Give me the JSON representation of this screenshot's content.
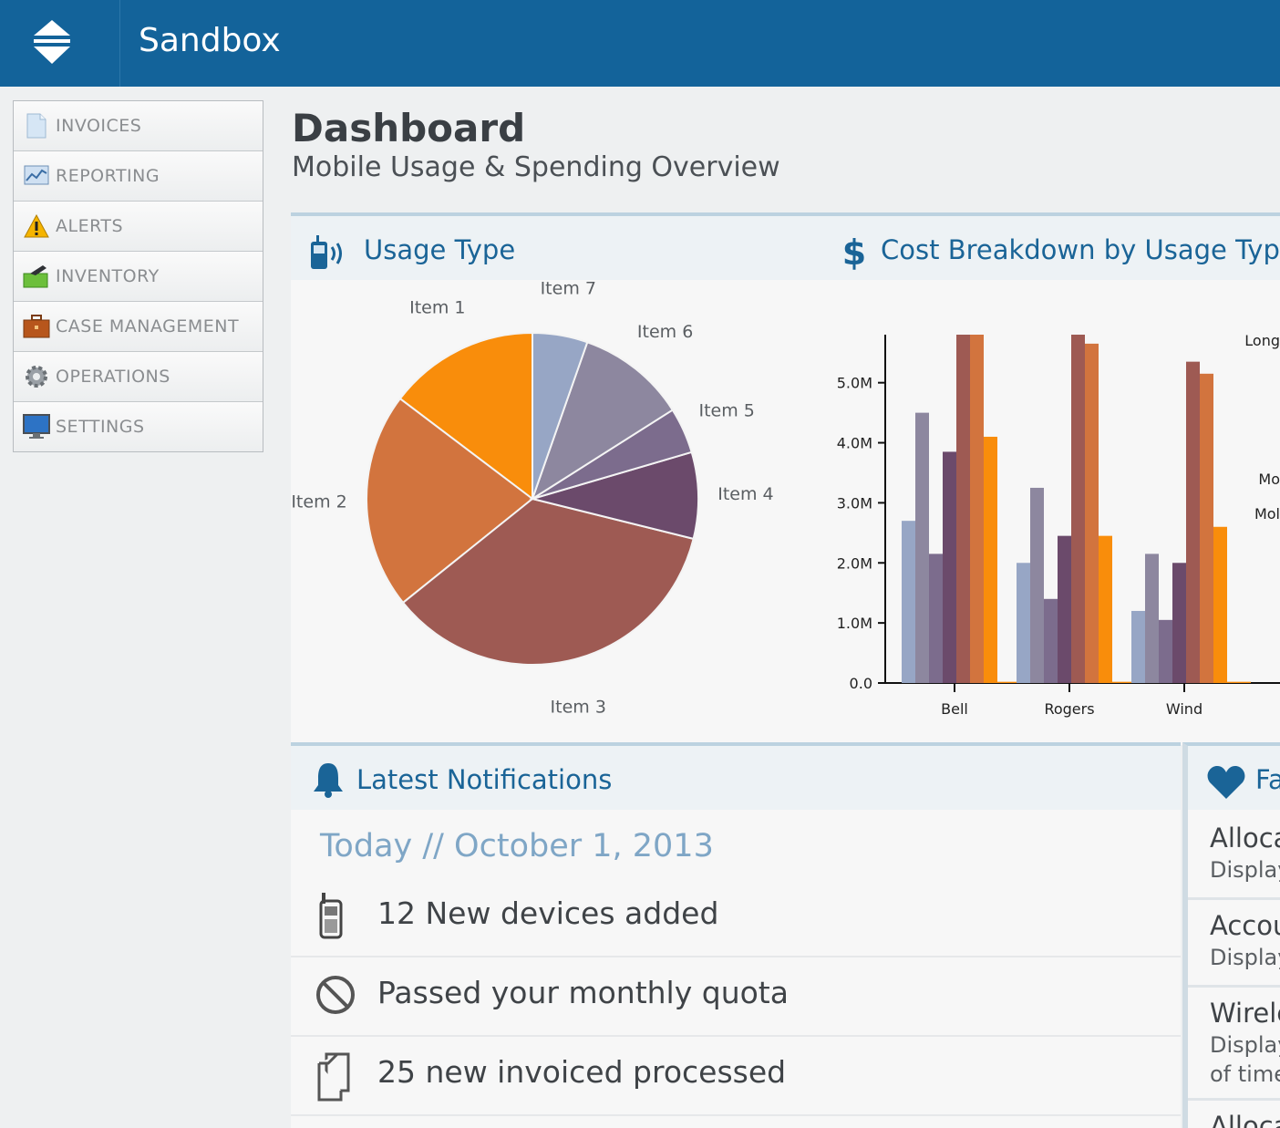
{
  "header": {
    "app_title": "Sandbox"
  },
  "sidebar": {
    "items": [
      {
        "label": "INVOICES",
        "icon": "document-icon"
      },
      {
        "label": "REPORTING",
        "icon": "chart-icon"
      },
      {
        "label": "ALERTS",
        "icon": "warning-icon"
      },
      {
        "label": "INVENTORY",
        "icon": "inventory-icon"
      },
      {
        "label": "CASE MANAGEMENT",
        "icon": "briefcase-icon"
      },
      {
        "label": "OPERATIONS",
        "icon": "gear-icon"
      },
      {
        "label": "SETTINGS",
        "icon": "monitor-icon"
      }
    ]
  },
  "page": {
    "title": "Dashboard",
    "subtitle": "Mobile Usage & Spending Overview"
  },
  "usage_panel": {
    "title": "Usage Type"
  },
  "cost_panel": {
    "title": "Cost Breakdown by Usage Typ"
  },
  "chart_data": [
    {
      "type": "pie",
      "title": "Usage Type",
      "labels": [
        "Item 1",
        "Item 2",
        "Item 3",
        "Item 4",
        "Item 5",
        "Item 6",
        "Item 7"
      ],
      "values": [
        14.5,
        20.8,
        34.9,
        8.3,
        4.4,
        10.5,
        5.3
      ],
      "colors": [
        "#f98d0b",
        "#d2743e",
        "#9e5a53",
        "#6b4a6b",
        "#7c6c8d",
        "#8d879f",
        "#97a6c5"
      ]
    },
    {
      "type": "bar",
      "title": "Cost Breakdown by Usage Typ",
      "categories": [
        "Bell",
        "Rogers",
        "Wind"
      ],
      "series": [
        {
          "name": "s1",
          "values": [
            2.7,
            2.0,
            1.2
          ],
          "color": "#97a6c5"
        },
        {
          "name": "s2",
          "values": [
            4.5,
            3.25,
            2.15
          ],
          "color": "#8d879f"
        },
        {
          "name": "s3",
          "values": [
            2.15,
            1.4,
            1.05
          ],
          "color": "#7c6c8d"
        },
        {
          "name": "s4",
          "values": [
            3.85,
            2.45,
            2.0
          ],
          "color": "#6b4a6b"
        },
        {
          "name": "s5",
          "values": [
            5.8,
            5.8,
            5.35
          ],
          "color": "#9e5a53"
        },
        {
          "name": "s6",
          "values": [
            5.8,
            5.65,
            5.15
          ],
          "color": "#d2743e"
        },
        {
          "name": "s7",
          "values": [
            4.1,
            2.45,
            2.6
          ],
          "color": "#f98d0b"
        },
        {
          "name": "s8",
          "values": [
            0.02,
            0.02,
            0.02
          ],
          "color": "#f98d0b"
        }
      ],
      "yticks": [
        "0.0",
        "1.0M",
        "2.0M",
        "3.0M",
        "4.0M",
        "5.0M"
      ],
      "ylim": [
        0,
        5.8
      ],
      "legend_partial": [
        "Long",
        "Mo",
        "Mol"
      ]
    }
  ],
  "notifications": {
    "title": "Latest Notifications",
    "date": "Today // October 1, 2013",
    "items": [
      {
        "text": "12 New devices added",
        "icon": "mobile-phone-icon"
      },
      {
        "text": "Passed your monthly quota",
        "icon": "prohibited-icon"
      },
      {
        "text": "25 new invoiced processed",
        "icon": "documents-icon"
      }
    ]
  },
  "favorites": {
    "title": "Fa",
    "items": [
      {
        "title": "Alloca",
        "desc": "Display"
      },
      {
        "title": "Accou",
        "desc": "Display"
      },
      {
        "title": "Wirele",
        "desc": "Display",
        "desc2": "of time"
      },
      {
        "title": "Alloca",
        "desc": ""
      }
    ]
  }
}
